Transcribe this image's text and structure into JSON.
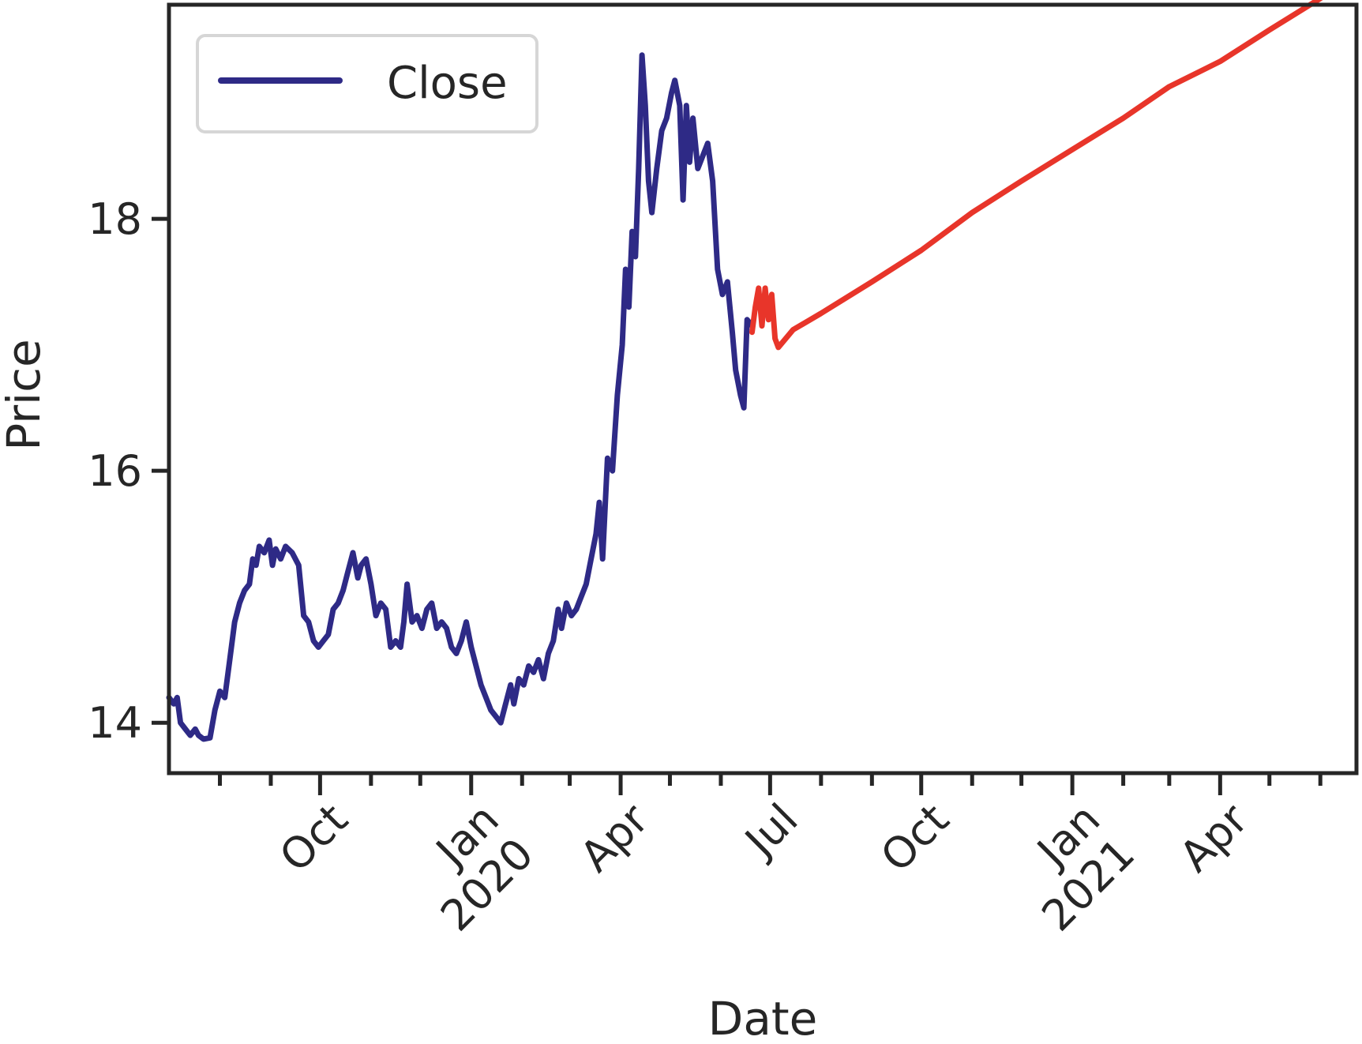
{
  "chart_data": {
    "type": "line",
    "xlabel": "Date",
    "ylabel": "Price",
    "xlim": [
      "2019-07-01",
      "2021-06-23"
    ],
    "ylim": [
      13.6,
      19.7
    ],
    "y_ticks": [
      14,
      16,
      18
    ],
    "x_major_ticks": [
      {
        "date": "2019-10-01",
        "label": "Oct"
      },
      {
        "date": "2020-01-01",
        "label": "Jan\n2020"
      },
      {
        "date": "2020-04-01",
        "label": "Apr"
      },
      {
        "date": "2020-07-01",
        "label": "Jul"
      },
      {
        "date": "2020-10-01",
        "label": "Oct"
      },
      {
        "date": "2021-01-01",
        "label": "Jan\n2021"
      },
      {
        "date": "2021-04-01",
        "label": "Apr"
      }
    ],
    "x_minor_ticks": [
      "2019-08-01",
      "2019-09-01",
      "2019-11-01",
      "2019-12-01",
      "2020-02-01",
      "2020-03-01",
      "2020-05-01",
      "2020-06-01",
      "2020-08-01",
      "2020-09-01",
      "2020-11-01",
      "2020-12-01",
      "2021-02-01",
      "2021-03-01",
      "2021-05-01",
      "2021-06-01"
    ],
    "grid": false,
    "legend": {
      "position": "upper-left",
      "entries": [
        "Close"
      ]
    },
    "series": [
      {
        "name": "Close",
        "color": "#2e2a86",
        "points": [
          [
            "2019-07-01",
            14.2
          ],
          [
            "2019-07-04",
            14.15
          ],
          [
            "2019-07-06",
            14.2
          ],
          [
            "2019-07-08",
            14.0
          ],
          [
            "2019-07-11",
            13.95
          ],
          [
            "2019-07-14",
            13.9
          ],
          [
            "2019-07-17",
            13.95
          ],
          [
            "2019-07-19",
            13.9
          ],
          [
            "2019-07-22",
            13.87
          ],
          [
            "2019-07-26",
            13.88
          ],
          [
            "2019-07-29",
            14.1
          ],
          [
            "2019-08-01",
            14.25
          ],
          [
            "2019-08-04",
            14.2
          ],
          [
            "2019-08-07",
            14.5
          ],
          [
            "2019-08-10",
            14.8
          ],
          [
            "2019-08-13",
            14.95
          ],
          [
            "2019-08-16",
            15.05
          ],
          [
            "2019-08-19",
            15.1
          ],
          [
            "2019-08-21",
            15.3
          ],
          [
            "2019-08-23",
            15.25
          ],
          [
            "2019-08-25",
            15.4
          ],
          [
            "2019-08-28",
            15.35
          ],
          [
            "2019-08-31",
            15.45
          ],
          [
            "2019-09-02",
            15.25
          ],
          [
            "2019-09-04",
            15.38
          ],
          [
            "2019-09-07",
            15.3
          ],
          [
            "2019-09-10",
            15.4
          ],
          [
            "2019-09-14",
            15.35
          ],
          [
            "2019-09-18",
            15.25
          ],
          [
            "2019-09-21",
            14.85
          ],
          [
            "2019-09-24",
            14.8
          ],
          [
            "2019-09-27",
            14.65
          ],
          [
            "2019-09-30",
            14.6
          ],
          [
            "2019-10-03",
            14.65
          ],
          [
            "2019-10-06",
            14.7
          ],
          [
            "2019-10-09",
            14.9
          ],
          [
            "2019-10-12",
            14.95
          ],
          [
            "2019-10-15",
            15.05
          ],
          [
            "2019-10-18",
            15.2
          ],
          [
            "2019-10-21",
            15.35
          ],
          [
            "2019-10-24",
            15.15
          ],
          [
            "2019-10-26",
            15.25
          ],
          [
            "2019-10-29",
            15.3
          ],
          [
            "2019-11-01",
            15.1
          ],
          [
            "2019-11-04",
            14.85
          ],
          [
            "2019-11-07",
            14.95
          ],
          [
            "2019-11-10",
            14.9
          ],
          [
            "2019-11-13",
            14.6
          ],
          [
            "2019-11-16",
            14.65
          ],
          [
            "2019-11-19",
            14.6
          ],
          [
            "2019-11-21",
            14.8
          ],
          [
            "2019-11-23",
            15.1
          ],
          [
            "2019-11-26",
            14.8
          ],
          [
            "2019-11-29",
            14.85
          ],
          [
            "2019-12-02",
            14.75
          ],
          [
            "2019-12-05",
            14.9
          ],
          [
            "2019-12-08",
            14.95
          ],
          [
            "2019-12-11",
            14.75
          ],
          [
            "2019-12-14",
            14.8
          ],
          [
            "2019-12-17",
            14.75
          ],
          [
            "2019-12-20",
            14.6
          ],
          [
            "2019-12-23",
            14.55
          ],
          [
            "2019-12-26",
            14.65
          ],
          [
            "2019-12-29",
            14.8
          ],
          [
            "2020-01-01",
            14.6
          ],
          [
            "2020-01-04",
            14.45
          ],
          [
            "2020-01-07",
            14.3
          ],
          [
            "2020-01-10",
            14.2
          ],
          [
            "2020-01-13",
            14.1
          ],
          [
            "2020-01-16",
            14.05
          ],
          [
            "2020-01-19",
            14.0
          ],
          [
            "2020-01-22",
            14.15
          ],
          [
            "2020-01-25",
            14.3
          ],
          [
            "2020-01-27",
            14.15
          ],
          [
            "2020-01-30",
            14.35
          ],
          [
            "2020-02-02",
            14.3
          ],
          [
            "2020-02-05",
            14.45
          ],
          [
            "2020-02-08",
            14.4
          ],
          [
            "2020-02-11",
            14.5
          ],
          [
            "2020-02-14",
            14.35
          ],
          [
            "2020-02-17",
            14.55
          ],
          [
            "2020-02-20",
            14.65
          ],
          [
            "2020-02-23",
            14.9
          ],
          [
            "2020-02-25",
            14.75
          ],
          [
            "2020-02-28",
            14.95
          ],
          [
            "2020-03-02",
            14.85
          ],
          [
            "2020-03-05",
            14.9
          ],
          [
            "2020-03-08",
            15.0
          ],
          [
            "2020-03-11",
            15.1
          ],
          [
            "2020-03-14",
            15.3
          ],
          [
            "2020-03-17",
            15.5
          ],
          [
            "2020-03-19",
            15.75
          ],
          [
            "2020-03-21",
            15.3
          ],
          [
            "2020-03-24",
            16.1
          ],
          [
            "2020-03-27",
            16.0
          ],
          [
            "2020-03-30",
            16.6
          ],
          [
            "2020-04-02",
            17.0
          ],
          [
            "2020-04-04",
            17.6
          ],
          [
            "2020-04-06",
            17.3
          ],
          [
            "2020-04-08",
            17.9
          ],
          [
            "2020-04-10",
            17.7
          ],
          [
            "2020-04-12",
            18.4
          ],
          [
            "2020-04-14",
            19.3
          ],
          [
            "2020-04-16",
            18.9
          ],
          [
            "2020-04-18",
            18.3
          ],
          [
            "2020-04-20",
            18.05
          ],
          [
            "2020-04-23",
            18.4
          ],
          [
            "2020-04-26",
            18.7
          ],
          [
            "2020-04-29",
            18.8
          ],
          [
            "2020-05-02",
            19.0
          ],
          [
            "2020-05-04",
            19.1
          ],
          [
            "2020-05-07",
            18.9
          ],
          [
            "2020-05-09",
            18.15
          ],
          [
            "2020-05-11",
            18.9
          ],
          [
            "2020-05-13",
            18.45
          ],
          [
            "2020-05-15",
            18.8
          ],
          [
            "2020-05-18",
            18.4
          ],
          [
            "2020-05-21",
            18.5
          ],
          [
            "2020-05-24",
            18.6
          ],
          [
            "2020-05-27",
            18.3
          ],
          [
            "2020-05-30",
            17.6
          ],
          [
            "2020-06-02",
            17.4
          ],
          [
            "2020-06-05",
            17.5
          ],
          [
            "2020-06-08",
            17.1
          ],
          [
            "2020-06-10",
            16.8
          ],
          [
            "2020-06-13",
            16.6
          ],
          [
            "2020-06-15",
            16.5
          ],
          [
            "2020-06-17",
            17.2
          ],
          [
            "2020-06-20",
            17.15
          ]
        ]
      },
      {
        "color": "#e8352a",
        "points": [
          [
            "2020-06-20",
            17.1
          ],
          [
            "2020-06-22",
            17.3
          ],
          [
            "2020-06-24",
            17.45
          ],
          [
            "2020-06-26",
            17.15
          ],
          [
            "2020-06-28",
            17.45
          ],
          [
            "2020-06-30",
            17.2
          ],
          [
            "2020-07-02",
            17.4
          ],
          [
            "2020-07-04",
            17.05
          ],
          [
            "2020-07-06",
            16.98
          ],
          [
            "2020-07-15",
            17.12
          ],
          [
            "2020-08-01",
            17.25
          ],
          [
            "2020-09-01",
            17.5
          ],
          [
            "2020-10-01",
            17.75
          ],
          [
            "2020-11-01",
            18.05
          ],
          [
            "2020-12-01",
            18.3
          ],
          [
            "2021-01-01",
            18.55
          ],
          [
            "2021-02-01",
            18.8
          ],
          [
            "2021-03-01",
            19.05
          ],
          [
            "2021-04-01",
            19.25
          ],
          [
            "2021-05-01",
            19.5
          ],
          [
            "2021-06-01",
            19.75
          ],
          [
            "2021-06-23",
            19.95
          ]
        ]
      }
    ]
  }
}
